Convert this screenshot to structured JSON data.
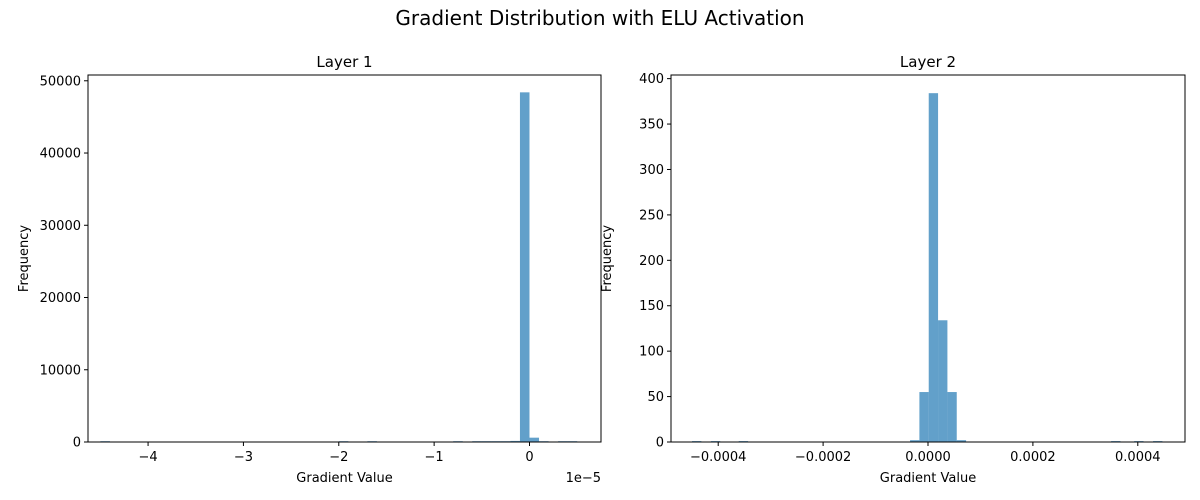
{
  "figure": {
    "title": "Gradient Distribution with ELU Activation"
  },
  "colors": {
    "bar": "#1f77b4",
    "bar_alpha": 0.7,
    "axis": "#000000"
  },
  "chart_data": [
    {
      "type": "bar",
      "title": "Layer 1",
      "xlabel": "Gradient Value",
      "ylabel": "Frequency",
      "offset_text": "1e−5",
      "xlim": [
        -4.63,
        0.75
      ],
      "ylim": [
        0,
        50800
      ],
      "xticks": [
        -4,
        -3,
        -2,
        -1,
        0
      ],
      "xtick_labels": [
        "−4",
        "−3",
        "−2",
        "−1",
        "0"
      ],
      "yticks": [
        0,
        10000,
        20000,
        30000,
        40000,
        50000
      ],
      "ytick_labels": [
        "0",
        "10000",
        "20000",
        "30000",
        "40000",
        "50000"
      ],
      "bin_width": 0.1,
      "bars": [
        {
          "x": -4.45,
          "value": 20
        },
        {
          "x": -1.95,
          "value": 20
        },
        {
          "x": -1.65,
          "value": 20
        },
        {
          "x": -0.75,
          "value": 20
        },
        {
          "x": -0.55,
          "value": 30
        },
        {
          "x": -0.45,
          "value": 40
        },
        {
          "x": -0.35,
          "value": 50
        },
        {
          "x": -0.25,
          "value": 60
        },
        {
          "x": -0.15,
          "value": 150
        },
        {
          "x": -0.05,
          "value": 48400
        },
        {
          "x": 0.05,
          "value": 600
        },
        {
          "x": 0.15,
          "value": 60
        },
        {
          "x": 0.35,
          "value": 20
        },
        {
          "x": 0.45,
          "value": 20
        }
      ]
    },
    {
      "type": "bar",
      "title": "Layer 2",
      "xlabel": "Gradient Value",
      "ylabel": "Frequency",
      "xlim": [
        -0.00049,
        0.00049
      ],
      "ylim": [
        0,
        404
      ],
      "xticks": [
        -0.0004,
        -0.0002,
        0,
        0.0002,
        0.0004
      ],
      "xtick_labels": [
        "−0.0004",
        "−0.0002",
        "0.0000",
        "0.0002",
        "0.0004"
      ],
      "yticks": [
        0,
        50,
        100,
        150,
        200,
        250,
        300,
        350,
        400
      ],
      "ytick_labels": [
        "0",
        "50",
        "100",
        "150",
        "200",
        "250",
        "300",
        "350",
        "400"
      ],
      "bin_width": 1.78e-05,
      "bars": [
        {
          "x": -0.000441,
          "value": 1
        },
        {
          "x": -0.000405,
          "value": 1
        },
        {
          "x": -0.000352,
          "value": 1
        },
        {
          "x": -2.53e-05,
          "value": 2
        },
        {
          "x": -7.5e-06,
          "value": 55
        },
        {
          "x": 1.03e-05,
          "value": 384
        },
        {
          "x": 2.81e-05,
          "value": 134
        },
        {
          "x": 4.59e-05,
          "value": 55
        },
        {
          "x": 6.37e-05,
          "value": 2
        },
        {
          "x": 0.000358,
          "value": 1
        },
        {
          "x": 0.000402,
          "value": 1
        },
        {
          "x": 0.000438,
          "value": 1
        }
      ]
    }
  ]
}
